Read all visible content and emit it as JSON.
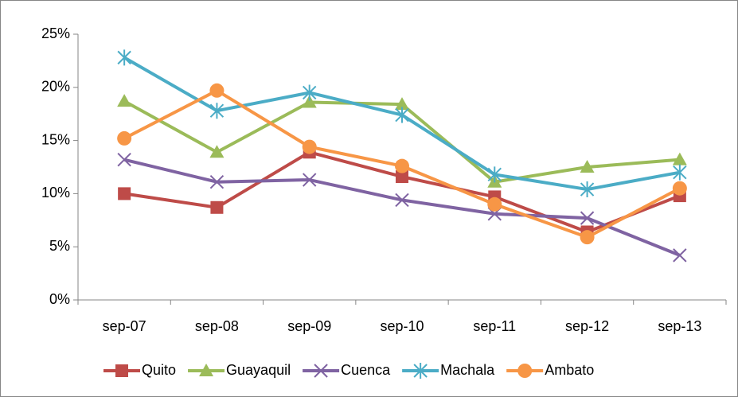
{
  "chart_data": {
    "type": "line",
    "categories": [
      "sep-07",
      "sep-08",
      "sep-09",
      "sep-10",
      "sep-11",
      "sep-12",
      "sep-13"
    ],
    "series": [
      {
        "name": "Quito",
        "color": "#be4b48",
        "marker": "square",
        "values": [
          10.0,
          8.7,
          13.9,
          11.6,
          9.7,
          6.4,
          9.8
        ]
      },
      {
        "name": "Guayaquil",
        "color": "#9bbb59",
        "marker": "triangle",
        "values": [
          18.7,
          13.9,
          18.6,
          18.4,
          11.1,
          12.5,
          13.2
        ]
      },
      {
        "name": "Cuenca",
        "color": "#7f63a2",
        "marker": "x",
        "values": [
          13.2,
          11.1,
          11.3,
          9.4,
          8.1,
          7.7,
          4.2
        ]
      },
      {
        "name": "Machala",
        "color": "#4bacc6",
        "marker": "asterisk",
        "values": [
          22.8,
          17.8,
          19.5,
          17.4,
          11.8,
          10.4,
          12.0
        ]
      },
      {
        "name": "Ambato",
        "color": "#f79646",
        "marker": "circle",
        "values": [
          15.2,
          19.7,
          14.4,
          12.6,
          9.0,
          5.9,
          10.5
        ]
      }
    ],
    "ylim": [
      0,
      25
    ],
    "yticks": [
      {
        "value": 0,
        "label": "0%"
      },
      {
        "value": 5,
        "label": "5%"
      },
      {
        "value": 10,
        "label": "10%"
      },
      {
        "value": 15,
        "label": "15%"
      },
      {
        "value": 20,
        "label": "20%"
      },
      {
        "value": 25,
        "label": "25%"
      }
    ],
    "legend": "bottom"
  }
}
